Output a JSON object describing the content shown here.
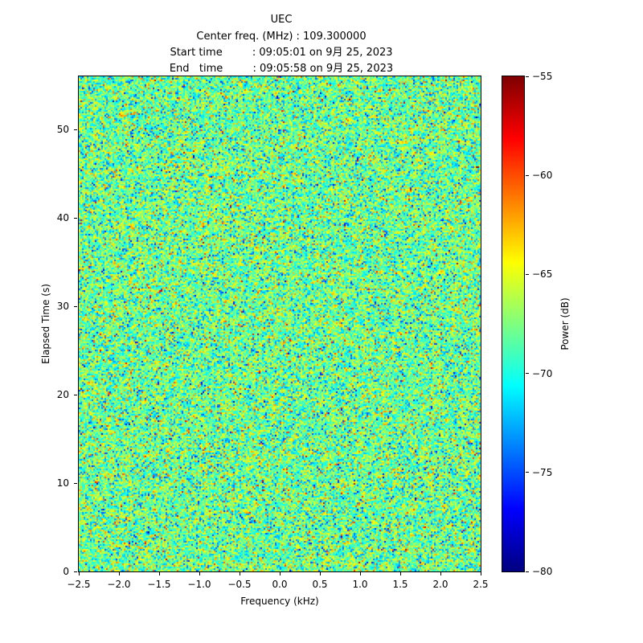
{
  "chart_data": {
    "type": "heatmap",
    "title": "UEC",
    "header_lines": [
      "Center freq. (MHz) : 109.300000",
      "Start time         : 09:05:01 on 9月 25, 2023",
      "End   time         : 09:05:58 on 9月 25, 2023"
    ],
    "xlabel": "Frequency (kHz)",
    "ylabel": "Elapsed Time (s)",
    "xlim": [
      -2.5,
      2.5
    ],
    "ylim": [
      0,
      56
    ],
    "xticks": [
      -2.5,
      -2.0,
      -1.5,
      -1.0,
      -0.5,
      0.0,
      0.5,
      1.0,
      1.5,
      2.0,
      2.5
    ],
    "xtick_labels": [
      "−2.5",
      "−2.0",
      "−1.5",
      "−1.0",
      "−0.5",
      "0.0",
      "0.5",
      "1.0",
      "1.5",
      "2.0",
      "2.5"
    ],
    "yticks": [
      0,
      10,
      20,
      30,
      40,
      50
    ],
    "ytick_labels": [
      "0",
      "10",
      "20",
      "30",
      "40",
      "50"
    ],
    "colorbar": {
      "label": "Power (dB)",
      "vmin": -80,
      "vmax": -55,
      "ticks": [
        -55,
        -60,
        -65,
        -70,
        -75,
        -80
      ],
      "tick_labels": [
        "−55",
        "−60",
        "−65",
        "−70",
        "−75",
        "−80"
      ],
      "colormap": "jet"
    },
    "noise": {
      "mean_db": -68,
      "std_db": 3.1,
      "spike_prob": 0.002,
      "seed": 20230925
    }
  }
}
